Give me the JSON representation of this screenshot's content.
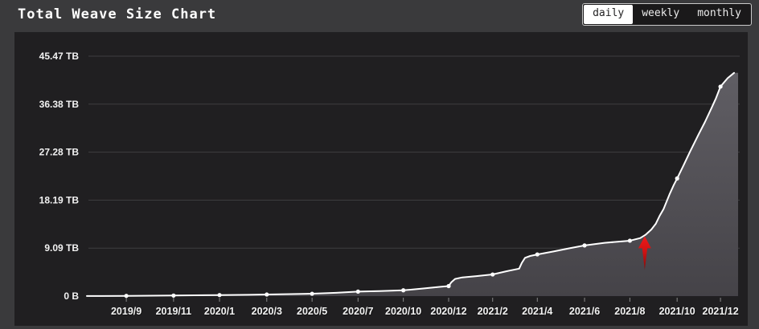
{
  "header": {
    "title": "Total Weave Size Chart",
    "tabs": [
      {
        "label": "daily",
        "active": true
      },
      {
        "label": "weekly",
        "active": false
      },
      {
        "label": "monthly",
        "active": false
      }
    ]
  },
  "chart_data": {
    "type": "area",
    "title": "Total Weave Size Chart",
    "ylabel": "",
    "xlabel": "",
    "y_max": 45.47,
    "grid": "horizontal-only",
    "y_ticks": [
      {
        "label": "0 B",
        "value": 0
      },
      {
        "label": "9.09 TB",
        "value": 9.09
      },
      {
        "label": "18.19 TB",
        "value": 18.19
      },
      {
        "label": "27.28 TB",
        "value": 27.28
      },
      {
        "label": "36.38 TB",
        "value": 36.38
      },
      {
        "label": "45.47 TB",
        "value": 45.47
      }
    ],
    "x_ticks": [
      {
        "label": "2019/9",
        "pos": 0.061,
        "value_tb": 0.05
      },
      {
        "label": "2019/11",
        "pos": 0.134,
        "value_tb": 0.1
      },
      {
        "label": "2020/1",
        "pos": 0.205,
        "value_tb": 0.2
      },
      {
        "label": "2020/3",
        "pos": 0.278,
        "value_tb": 0.3
      },
      {
        "label": "2020/5",
        "pos": 0.348,
        "value_tb": 0.45
      },
      {
        "label": "2020/7",
        "pos": 0.419,
        "value_tb": 0.85
      },
      {
        "label": "2020/10",
        "pos": 0.489,
        "value_tb": 1.1
      },
      {
        "label": "2020/12",
        "pos": 0.559,
        "value_tb": 1.9
      },
      {
        "label": "2021/2",
        "pos": 0.627,
        "value_tb": 4.1
      },
      {
        "label": "2021/4",
        "pos": 0.696,
        "value_tb": 7.9
      },
      {
        "label": "2021/6",
        "pos": 0.769,
        "value_tb": 9.6
      },
      {
        "label": "2021/8",
        "pos": 0.839,
        "value_tb": 10.5
      },
      {
        "label": "2021/10",
        "pos": 0.912,
        "value_tb": 22.3
      },
      {
        "label": "2021/12",
        "pos": 0.979,
        "value_tb": 39.7
      }
    ],
    "dense_series": [
      [
        0.0,
        0.02
      ],
      [
        0.061,
        0.05
      ],
      [
        0.134,
        0.1
      ],
      [
        0.205,
        0.2
      ],
      [
        0.25,
        0.25
      ],
      [
        0.278,
        0.3
      ],
      [
        0.315,
        0.38
      ],
      [
        0.348,
        0.45
      ],
      [
        0.385,
        0.62
      ],
      [
        0.419,
        0.85
      ],
      [
        0.452,
        0.95
      ],
      [
        0.489,
        1.1
      ],
      [
        0.52,
        1.45
      ],
      [
        0.545,
        1.75
      ],
      [
        0.559,
        1.9
      ],
      [
        0.563,
        2.6
      ],
      [
        0.569,
        3.25
      ],
      [
        0.58,
        3.55
      ],
      [
        0.602,
        3.78
      ],
      [
        0.627,
        4.1
      ],
      [
        0.648,
        4.7
      ],
      [
        0.668,
        5.2
      ],
      [
        0.672,
        6.3
      ],
      [
        0.677,
        7.25
      ],
      [
        0.685,
        7.6
      ],
      [
        0.696,
        7.9
      ],
      [
        0.721,
        8.45
      ],
      [
        0.745,
        9.05
      ],
      [
        0.769,
        9.6
      ],
      [
        0.8,
        10.1
      ],
      [
        0.839,
        10.5
      ],
      [
        0.855,
        11.0
      ],
      [
        0.863,
        11.6
      ],
      [
        0.872,
        12.6
      ],
      [
        0.879,
        13.7
      ],
      [
        0.885,
        15.2
      ],
      [
        0.891,
        16.5
      ],
      [
        0.9,
        19.2
      ],
      [
        0.907,
        21.1
      ],
      [
        0.912,
        22.3
      ],
      [
        0.922,
        24.8
      ],
      [
        0.932,
        27.4
      ],
      [
        0.945,
        30.6
      ],
      [
        0.955,
        33.0
      ],
      [
        0.965,
        35.6
      ],
      [
        0.972,
        37.5
      ],
      [
        0.979,
        39.7
      ],
      [
        0.99,
        41.3
      ],
      [
        1.0,
        42.3
      ]
    ],
    "annotation_arrow": {
      "pos": 0.862,
      "points_at_tb": 11.5,
      "color": "#ee1b1b"
    },
    "colors": {
      "line": "#ffffff",
      "marker": "#ffffff",
      "fill_top": "#605e64",
      "fill_bottom": "#454348",
      "grid": "#3e3e41",
      "tick": "#8a8a8a",
      "axis_text": "#f2f2f2",
      "panel_bg": "#201f21",
      "page_bg": "#3a3a3c",
      "tab_active_bg": "#ffffff"
    }
  }
}
